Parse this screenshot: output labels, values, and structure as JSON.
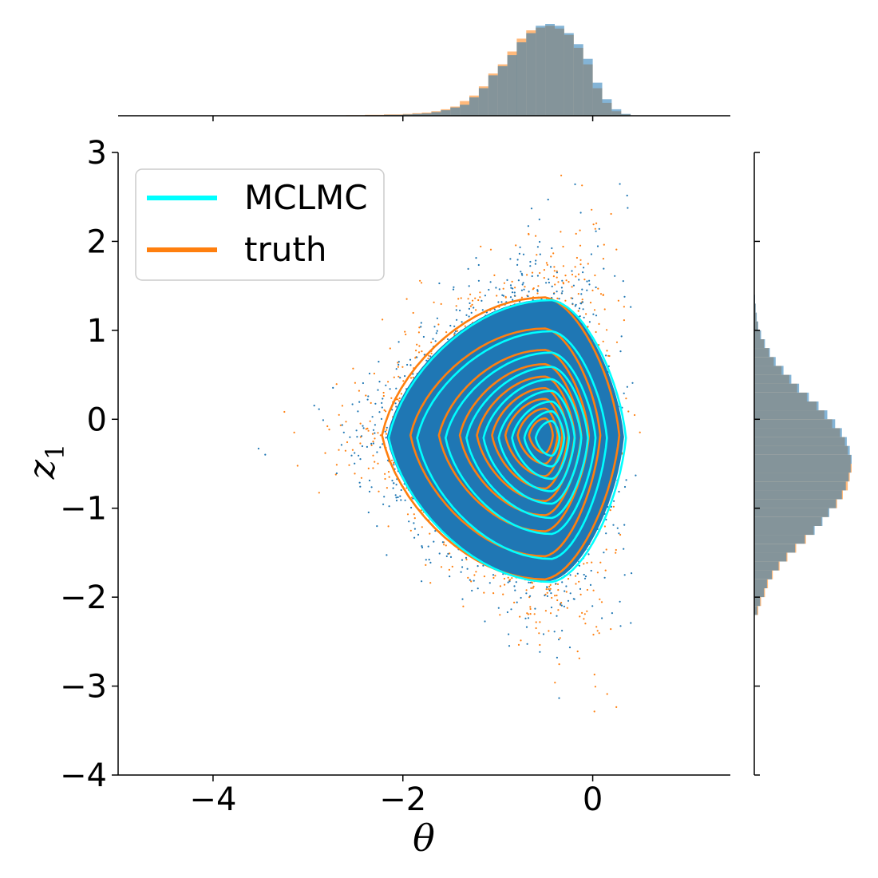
{
  "chart_data": {
    "type": "scatter",
    "title": "",
    "xlabel": "θ",
    "ylabel": "z",
    "ylabel_subscript": "1",
    "xlim": [
      -5.0,
      1.45
    ],
    "ylim": [
      -4,
      3
    ],
    "xticks": [
      -4,
      -2,
      0
    ],
    "xtick_labels": [
      "−4",
      "−2",
      "0"
    ],
    "yticks": [
      -4,
      -3,
      -2,
      -1,
      0,
      1,
      2,
      3
    ],
    "ytick_labels": [
      "−4",
      "−3",
      "−2",
      "−1",
      "0",
      "1",
      "2",
      "3"
    ],
    "grid": false,
    "legend_position": "top-left",
    "mode_theta": -0.45,
    "mode_z1": -0.2,
    "series": [
      {
        "name": "MCLMC",
        "line_color": "#00ffff",
        "point_color": "#1f77b4",
        "hist_color": "#1f77b4"
      },
      {
        "name": "truth",
        "line_color": "#ff7f0e",
        "point_color": "#ff7f0e",
        "hist_color": "#ff7f0e"
      }
    ],
    "marginal_theta": {
      "edges": [
        -2.8,
        -2.6,
        -2.4,
        -2.2,
        -2.0,
        -1.9,
        -1.8,
        -1.7,
        -1.6,
        -1.5,
        -1.4,
        -1.3,
        -1.2,
        -1.1,
        -1.0,
        -0.9,
        -0.8,
        -0.7,
        -0.6,
        -0.5,
        -0.4,
        -0.3,
        -0.2,
        -0.1,
        0.0,
        0.1,
        0.2,
        0.3,
        0.4,
        0.5
      ],
      "MCLMC": [
        0.002,
        0.003,
        0.006,
        0.01,
        0.015,
        0.02,
        0.025,
        0.04,
        0.06,
        0.09,
        0.12,
        0.2,
        0.3,
        0.44,
        0.54,
        0.66,
        0.8,
        0.9,
        0.98,
        1.0,
        0.98,
        0.9,
        0.78,
        0.62,
        0.36,
        0.18,
        0.07,
        0.02,
        0.004
      ],
      "truth": [
        0.004,
        0.006,
        0.01,
        0.015,
        0.02,
        0.028,
        0.035,
        0.05,
        0.07,
        0.1,
        0.16,
        0.22,
        0.32,
        0.46,
        0.56,
        0.7,
        0.84,
        0.93,
        0.96,
        0.98,
        0.95,
        0.88,
        0.74,
        0.56,
        0.3,
        0.14,
        0.05,
        0.015,
        0.003
      ]
    },
    "marginal_z1": {
      "edges": [
        -2.2,
        -2.1,
        -2.0,
        -1.9,
        -1.8,
        -1.7,
        -1.6,
        -1.5,
        -1.4,
        -1.3,
        -1.2,
        -1.1,
        -1.0,
        -0.9,
        -0.8,
        -0.7,
        -0.6,
        -0.5,
        -0.4,
        -0.3,
        -0.2,
        -0.1,
        0.0,
        0.1,
        0.2,
        0.3,
        0.4,
        0.5,
        0.6,
        0.7,
        0.8,
        0.9,
        1.0,
        1.1,
        1.2,
        1.3,
        1.4,
        1.5,
        1.6
      ],
      "MCLMC": [
        0.03,
        0.06,
        0.1,
        0.13,
        0.18,
        0.25,
        0.33,
        0.42,
        0.52,
        0.62,
        0.7,
        0.77,
        0.84,
        0.9,
        0.94,
        0.97,
        0.99,
        1.0,
        0.98,
        0.95,
        0.9,
        0.83,
        0.75,
        0.66,
        0.56,
        0.46,
        0.38,
        0.3,
        0.22,
        0.16,
        0.11,
        0.07,
        0.04,
        0.025,
        0.015,
        0.008,
        0.004,
        0.002
      ],
      "truth": [
        0.04,
        0.07,
        0.11,
        0.14,
        0.19,
        0.26,
        0.34,
        0.43,
        0.53,
        0.61,
        0.69,
        0.76,
        0.85,
        0.91,
        0.96,
        0.98,
        1.0,
        0.99,
        0.96,
        0.93,
        0.88,
        0.8,
        0.72,
        0.64,
        0.54,
        0.44,
        0.36,
        0.28,
        0.2,
        0.15,
        0.1,
        0.06,
        0.035,
        0.02,
        0.012,
        0.006,
        0.003,
        0.002
      ]
    },
    "contour_levels_MCLMC": [
      {
        "r_left": 1.72,
        "r_right": 0.78,
        "r_up": 1.55,
        "r_down": 1.62
      },
      {
        "r_left": 1.42,
        "r_right": 0.58,
        "r_up": 1.2,
        "r_down": 1.36
      },
      {
        "r_left": 1.12,
        "r_right": 0.46,
        "r_up": 0.96,
        "r_down": 1.08
      },
      {
        "r_left": 0.9,
        "r_right": 0.38,
        "r_up": 0.8,
        "r_down": 0.9
      },
      {
        "r_left": 0.72,
        "r_right": 0.31,
        "r_up": 0.66,
        "r_down": 0.74
      },
      {
        "r_left": 0.56,
        "r_right": 0.24,
        "r_up": 0.53,
        "r_down": 0.6
      },
      {
        "r_left": 0.42,
        "r_right": 0.18,
        "r_up": 0.41,
        "r_down": 0.46
      },
      {
        "r_left": 0.29,
        "r_right": 0.13,
        "r_up": 0.3,
        "r_down": 0.32
      },
      {
        "r_left": 0.17,
        "r_right": 0.08,
        "r_up": 0.19,
        "r_down": 0.2
      }
    ]
  }
}
